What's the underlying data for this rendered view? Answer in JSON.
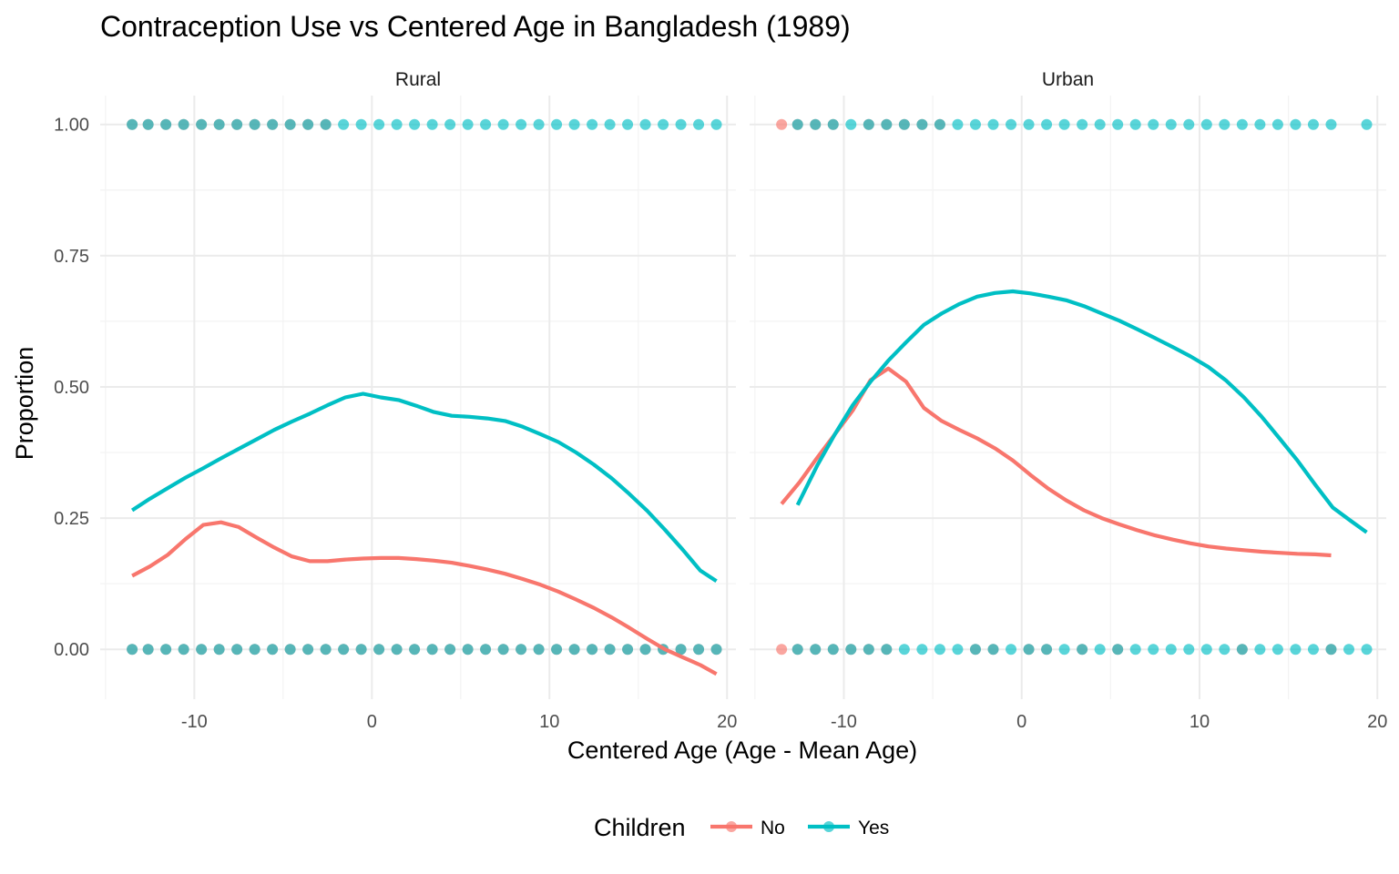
{
  "chart_data": {
    "type": "scatter",
    "title": "Contraception Use vs Centered Age in Bangladesh (1989)",
    "xlabel": "Centered Age (Age - Mean Age)",
    "ylabel": "Proportion",
    "xlim": [
      -15.3,
      20.5
    ],
    "ylim": [
      -0.095,
      1.055
    ],
    "x_ticks": [
      -10,
      0,
      10,
      20
    ],
    "y_ticks": [
      0.0,
      0.25,
      0.5,
      0.75,
      1.0
    ],
    "x_tick_labels": [
      "-10",
      "0",
      "10",
      "20"
    ],
    "y_tick_labels": [
      "0.00",
      "0.25",
      "0.50",
      "0.75",
      "1.00"
    ],
    "grid": true,
    "legend": {
      "title": "Children",
      "placement": "bottom",
      "entries": [
        {
          "label": "No",
          "color": "#F8766D"
        },
        {
          "label": "Yes",
          "color": "#00BFC4"
        }
      ]
    },
    "panels": [
      {
        "label": "Rural",
        "points_yes": {
          "y1": [
            -13.5,
            -12.6,
            -11.6,
            -10.6,
            -9.6,
            -8.6,
            -7.6,
            -6.6,
            -5.6,
            -4.6,
            -3.6,
            -2.6,
            -1.6,
            -0.6,
            0.4,
            1.4,
            2.4,
            3.4,
            4.4,
            5.4,
            6.4,
            7.4,
            8.4,
            9.4,
            10.4,
            11.4,
            12.4,
            13.4,
            14.4,
            15.4,
            16.4,
            17.4,
            18.4,
            19.4
          ],
          "y0": [
            -13.5,
            -12.6,
            -11.6,
            -10.6,
            -9.6,
            -8.6,
            -7.6,
            -6.6,
            -5.6,
            -4.6,
            -3.6,
            -2.6,
            -1.6,
            -0.6,
            0.4,
            1.4,
            2.4,
            3.4,
            4.4,
            5.4,
            6.4,
            7.4,
            8.4,
            9.4,
            10.4,
            11.4,
            12.4,
            13.4,
            14.4,
            15.4,
            16.4,
            17.4,
            18.4,
            19.4
          ]
        },
        "points_no": {
          "y1": [
            -13.5,
            -12.6,
            -11.6,
            -10.6,
            -9.6,
            -8.6,
            -7.6,
            -6.6,
            -5.6,
            -4.6,
            -3.6,
            -2.6
          ],
          "y0": [
            -13.5,
            -12.6,
            -11.6,
            -10.6,
            -9.6,
            -8.6,
            -7.6,
            -6.6,
            -5.6,
            -4.6,
            -3.6,
            -2.6,
            -1.6,
            -0.6,
            0.4,
            1.4,
            2.4,
            3.4,
            4.4,
            5.4,
            6.4,
            7.4,
            8.4,
            9.4,
            10.4,
            11.4,
            12.4,
            13.4,
            14.4,
            15.4,
            16.4,
            17.4,
            18.4,
            19.4
          ]
        },
        "smooth_no": {
          "x": [
            -13.5,
            -12.5,
            -11.5,
            -10.5,
            -9.5,
            -8.5,
            -7.5,
            -6.5,
            -5.5,
            -4.5,
            -3.5,
            -2.5,
            -1.5,
            -0.5,
            0.5,
            1.5,
            2.5,
            3.5,
            4.5,
            5.5,
            6.5,
            7.5,
            8.5,
            9.5,
            10.5,
            11.5,
            12.5,
            13.5,
            14.5,
            15.5,
            16.5,
            17.5,
            18.5,
            19.4
          ],
          "y": [
            0.14,
            0.158,
            0.18,
            0.21,
            0.237,
            0.242,
            0.233,
            0.213,
            0.194,
            0.177,
            0.168,
            0.168,
            0.171,
            0.173,
            0.174,
            0.174,
            0.172,
            0.169,
            0.165,
            0.159,
            0.152,
            0.144,
            0.134,
            0.123,
            0.11,
            0.095,
            0.079,
            0.061,
            0.041,
            0.02,
            0.0,
            -0.015,
            -0.03,
            -0.047
          ]
        },
        "smooth_yes": {
          "x": [
            -13.5,
            -12.5,
            -11.5,
            -10.5,
            -9.5,
            -8.5,
            -7.5,
            -6.5,
            -5.5,
            -4.5,
            -3.5,
            -2.5,
            -1.5,
            -0.5,
            0.5,
            1.5,
            2.5,
            3.5,
            4.5,
            5.5,
            6.5,
            7.5,
            8.5,
            9.5,
            10.5,
            11.5,
            12.5,
            13.5,
            14.5,
            15.5,
            16.5,
            17.5,
            18.5,
            19.4
          ],
          "y": [
            0.265,
            0.287,
            0.307,
            0.327,
            0.345,
            0.364,
            0.382,
            0.4,
            0.418,
            0.434,
            0.449,
            0.465,
            0.48,
            0.487,
            0.48,
            0.475,
            0.464,
            0.452,
            0.445,
            0.443,
            0.44,
            0.435,
            0.424,
            0.41,
            0.395,
            0.375,
            0.352,
            0.326,
            0.296,
            0.264,
            0.228,
            0.19,
            0.15,
            0.13
          ]
        }
      },
      {
        "label": "Urban",
        "points_yes": {
          "y1": [
            -12.6,
            -11.6,
            -10.6,
            -9.6,
            -8.6,
            -7.6,
            -6.6,
            -5.6,
            -4.6,
            -3.6,
            -2.6,
            -1.6,
            -0.6,
            0.4,
            1.4,
            2.4,
            3.4,
            4.4,
            5.4,
            6.4,
            7.4,
            8.4,
            9.4,
            10.4,
            11.4,
            12.4,
            13.4,
            14.4,
            15.4,
            16.4,
            17.4,
            19.4
          ],
          "y0": [
            -12.6,
            -11.6,
            -10.6,
            -9.6,
            -8.6,
            -7.6,
            -6.6,
            -5.6,
            -4.6,
            -3.6,
            -2.6,
            -1.6,
            -0.6,
            0.4,
            1.4,
            2.4,
            3.4,
            4.4,
            5.4,
            6.4,
            7.4,
            8.4,
            9.4,
            10.4,
            11.4,
            12.4,
            13.4,
            14.4,
            15.4,
            16.4,
            17.4,
            18.4,
            19.4
          ]
        },
        "points_no": {
          "y1": [
            -13.5,
            -12.6,
            -11.6,
            -10.6,
            -8.6,
            -7.6,
            -6.6,
            -5.6,
            -4.6
          ],
          "y0": [
            -13.5,
            -12.6,
            -11.6,
            -10.6,
            -9.6,
            -8.6,
            -7.6,
            -2.6,
            -1.6,
            0.4,
            1.4,
            3.4,
            5.4,
            12.4,
            17.4
          ]
        },
        "smooth_no": {
          "x": [
            -13.5,
            -12.5,
            -11.5,
            -10.5,
            -9.5,
            -8.5,
            -7.5,
            -6.5,
            -5.5,
            -4.5,
            -3.5,
            -2.5,
            -1.5,
            -0.5,
            0.5,
            1.5,
            2.5,
            3.5,
            4.5,
            5.5,
            6.5,
            7.5,
            8.5,
            9.5,
            10.5,
            11.5,
            12.5,
            13.5,
            14.5,
            15.5,
            16.5,
            17.4
          ],
          "y": [
            0.277,
            0.318,
            0.365,
            0.41,
            0.455,
            0.513,
            0.535,
            0.51,
            0.46,
            0.435,
            0.418,
            0.402,
            0.383,
            0.36,
            0.332,
            0.306,
            0.284,
            0.265,
            0.25,
            0.238,
            0.227,
            0.217,
            0.209,
            0.202,
            0.196,
            0.192,
            0.189,
            0.186,
            0.184,
            0.182,
            0.181,
            0.179
          ]
        },
        "smooth_yes": {
          "x": [
            -12.6,
            -11.5,
            -10.5,
            -9.5,
            -8.5,
            -7.5,
            -6.5,
            -5.5,
            -4.5,
            -3.5,
            -2.5,
            -1.5,
            -0.5,
            0.5,
            1.5,
            2.5,
            3.5,
            4.5,
            5.5,
            6.5,
            7.5,
            8.5,
            9.5,
            10.5,
            11.5,
            12.5,
            13.5,
            14.5,
            15.5,
            16.5,
            17.5,
            18.5,
            19.4
          ],
          "y": [
            0.275,
            0.35,
            0.41,
            0.465,
            0.51,
            0.55,
            0.585,
            0.618,
            0.64,
            0.658,
            0.672,
            0.679,
            0.682,
            0.678,
            0.672,
            0.665,
            0.654,
            0.64,
            0.626,
            0.61,
            0.593,
            0.576,
            0.558,
            0.538,
            0.512,
            0.48,
            0.443,
            0.402,
            0.36,
            0.314,
            0.27,
            0.245,
            0.223
          ]
        }
      }
    ]
  }
}
